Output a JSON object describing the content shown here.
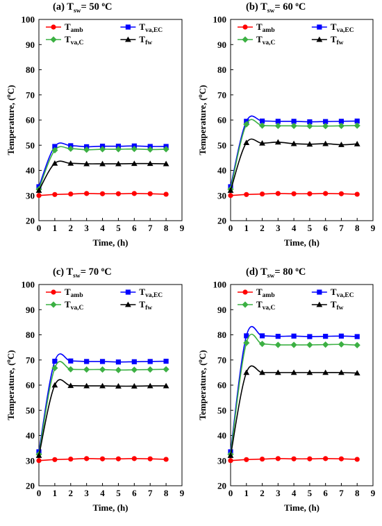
{
  "chart_data": [
    {
      "type": "line",
      "title": {
        "prefix": "(a) T",
        "sub": "sw",
        "value": "= 50 ",
        "unit_sup": "o",
        "unit": "C"
      },
      "xlabel": "Time, (h)",
      "ylabel": "Temperature, (oC)",
      "xlim": [
        0,
        9
      ],
      "ylim": [
        20,
        100
      ],
      "xticks": [
        0,
        1,
        2,
        3,
        4,
        5,
        6,
        7,
        8,
        9
      ],
      "yticks": [
        20,
        30,
        40,
        50,
        60,
        70,
        80,
        90,
        100
      ],
      "x": [
        0,
        1,
        2,
        3,
        4,
        5,
        6,
        7,
        8
      ],
      "series": [
        {
          "name": "T",
          "sub": "amb",
          "color": "#ff0000",
          "marker": "circle",
          "values": [
            30,
            30.4,
            30.6,
            30.8,
            30.7,
            30.7,
            30.8,
            30.7,
            30.5
          ]
        },
        {
          "name": "T",
          "sub": "va,EC",
          "color": "#0000ff",
          "marker": "square",
          "values": [
            33.5,
            49.5,
            49.8,
            49.4,
            49.6,
            49.6,
            49.7,
            49.5,
            49.5
          ]
        },
        {
          "name": "T",
          "sub": "va,C",
          "color": "#3cb043",
          "marker": "diamond",
          "values": [
            32.5,
            48,
            48.6,
            48.2,
            48.4,
            48.4,
            48.5,
            48.3,
            48.4
          ]
        },
        {
          "name": "T",
          "sub": "fw",
          "color": "#000000",
          "marker": "triangle",
          "values": [
            32,
            42.8,
            42.8,
            42.6,
            42.6,
            42.6,
            42.7,
            42.7,
            42.6
          ]
        }
      ]
    },
    {
      "type": "line",
      "title": {
        "prefix": "(b) T",
        "sub": "sw",
        "value": "= 60 ",
        "unit_sup": "o",
        "unit": "C"
      },
      "xlabel": "Time, (h)",
      "ylabel": "Temperature, (oC)",
      "xlim": [
        0,
        9
      ],
      "ylim": [
        20,
        100
      ],
      "xticks": [
        0,
        1,
        2,
        3,
        4,
        5,
        6,
        7,
        8,
        9
      ],
      "yticks": [
        20,
        30,
        40,
        50,
        60,
        70,
        80,
        90,
        100
      ],
      "x": [
        0,
        1,
        2,
        3,
        4,
        5,
        6,
        7,
        8
      ],
      "series": [
        {
          "name": "T",
          "sub": "amb",
          "color": "#ff0000",
          "marker": "circle",
          "values": [
            30,
            30.4,
            30.6,
            30.8,
            30.7,
            30.7,
            30.8,
            30.7,
            30.5
          ]
        },
        {
          "name": "T",
          "sub": "va,EC",
          "color": "#0000ff",
          "marker": "square",
          "values": [
            33.5,
            59.5,
            59.6,
            59.5,
            59.5,
            59.3,
            59.4,
            59.5,
            59.6
          ]
        },
        {
          "name": "T",
          "sub": "va,C",
          "color": "#3cb043",
          "marker": "diamond",
          "values": [
            32.5,
            58.3,
            57.8,
            57.7,
            57.7,
            57.6,
            57.6,
            57.7,
            57.8
          ]
        },
        {
          "name": "T",
          "sub": "fw",
          "color": "#000000",
          "marker": "triangle",
          "values": [
            32,
            51,
            50.8,
            51.2,
            50.6,
            50.4,
            50.6,
            50.2,
            50.5
          ]
        }
      ]
    },
    {
      "type": "line",
      "title": {
        "prefix": "(c) T",
        "sub": "sw",
        "value": "= 70 ",
        "unit_sup": "o",
        "unit": "C"
      },
      "xlabel": "Time, (h)",
      "ylabel": "Temperature, (oC)",
      "xlim": [
        0,
        9
      ],
      "ylim": [
        20,
        100
      ],
      "xticks": [
        0,
        1,
        2,
        3,
        4,
        5,
        6,
        7,
        8,
        9
      ],
      "yticks": [
        20,
        30,
        40,
        50,
        60,
        70,
        80,
        90,
        100
      ],
      "x": [
        0,
        1,
        2,
        3,
        4,
        5,
        6,
        7,
        8
      ],
      "series": [
        {
          "name": "T",
          "sub": "amb",
          "color": "#ff0000",
          "marker": "circle",
          "values": [
            30,
            30.4,
            30.6,
            30.8,
            30.7,
            30.7,
            30.8,
            30.7,
            30.5
          ]
        },
        {
          "name": "T",
          "sub": "va,EC",
          "color": "#0000ff",
          "marker": "square",
          "values": [
            33.5,
            69.5,
            69.6,
            69.4,
            69.4,
            69.2,
            69.3,
            69.4,
            69.5
          ]
        },
        {
          "name": "T",
          "sub": "va,C",
          "color": "#3cb043",
          "marker": "diamond",
          "values": [
            32.5,
            66.8,
            66.3,
            66.2,
            66.2,
            66,
            66.1,
            66.2,
            66.3
          ]
        },
        {
          "name": "T",
          "sub": "fw",
          "color": "#000000",
          "marker": "triangle",
          "values": [
            32,
            60,
            59.8,
            59.7,
            59.7,
            59.6,
            59.6,
            59.7,
            59.7
          ]
        }
      ]
    },
    {
      "type": "line",
      "title": {
        "prefix": "(d) T",
        "sub": "sw",
        "value": "= 80 ",
        "unit_sup": "o",
        "unit": "C"
      },
      "xlabel": "Time, (h)",
      "ylabel": "Temperature, (oC)",
      "xlim": [
        0,
        9
      ],
      "ylim": [
        20,
        100
      ],
      "xticks": [
        0,
        1,
        2,
        3,
        4,
        5,
        6,
        7,
        8,
        9
      ],
      "yticks": [
        20,
        30,
        40,
        50,
        60,
        70,
        80,
        90,
        100
      ],
      "x": [
        0,
        1,
        2,
        3,
        4,
        5,
        6,
        7,
        8
      ],
      "series": [
        {
          "name": "T",
          "sub": "amb",
          "color": "#ff0000",
          "marker": "circle",
          "values": [
            30,
            30.4,
            30.6,
            30.8,
            30.7,
            30.7,
            30.8,
            30.7,
            30.5
          ]
        },
        {
          "name": "T",
          "sub": "va,EC",
          "color": "#0000ff",
          "marker": "square",
          "values": [
            33.5,
            79.6,
            79.6,
            79.4,
            79.5,
            79.3,
            79.4,
            79.5,
            79.3
          ]
        },
        {
          "name": "T",
          "sub": "va,C",
          "color": "#3cb043",
          "marker": "diamond",
          "values": [
            32.5,
            76.8,
            76.4,
            76,
            76,
            76,
            76.1,
            76.2,
            75.9
          ]
        },
        {
          "name": "T",
          "sub": "fw",
          "color": "#000000",
          "marker": "triangle",
          "values": [
            32,
            65,
            65,
            65,
            65,
            65,
            65,
            65,
            64.8
          ]
        }
      ]
    }
  ]
}
